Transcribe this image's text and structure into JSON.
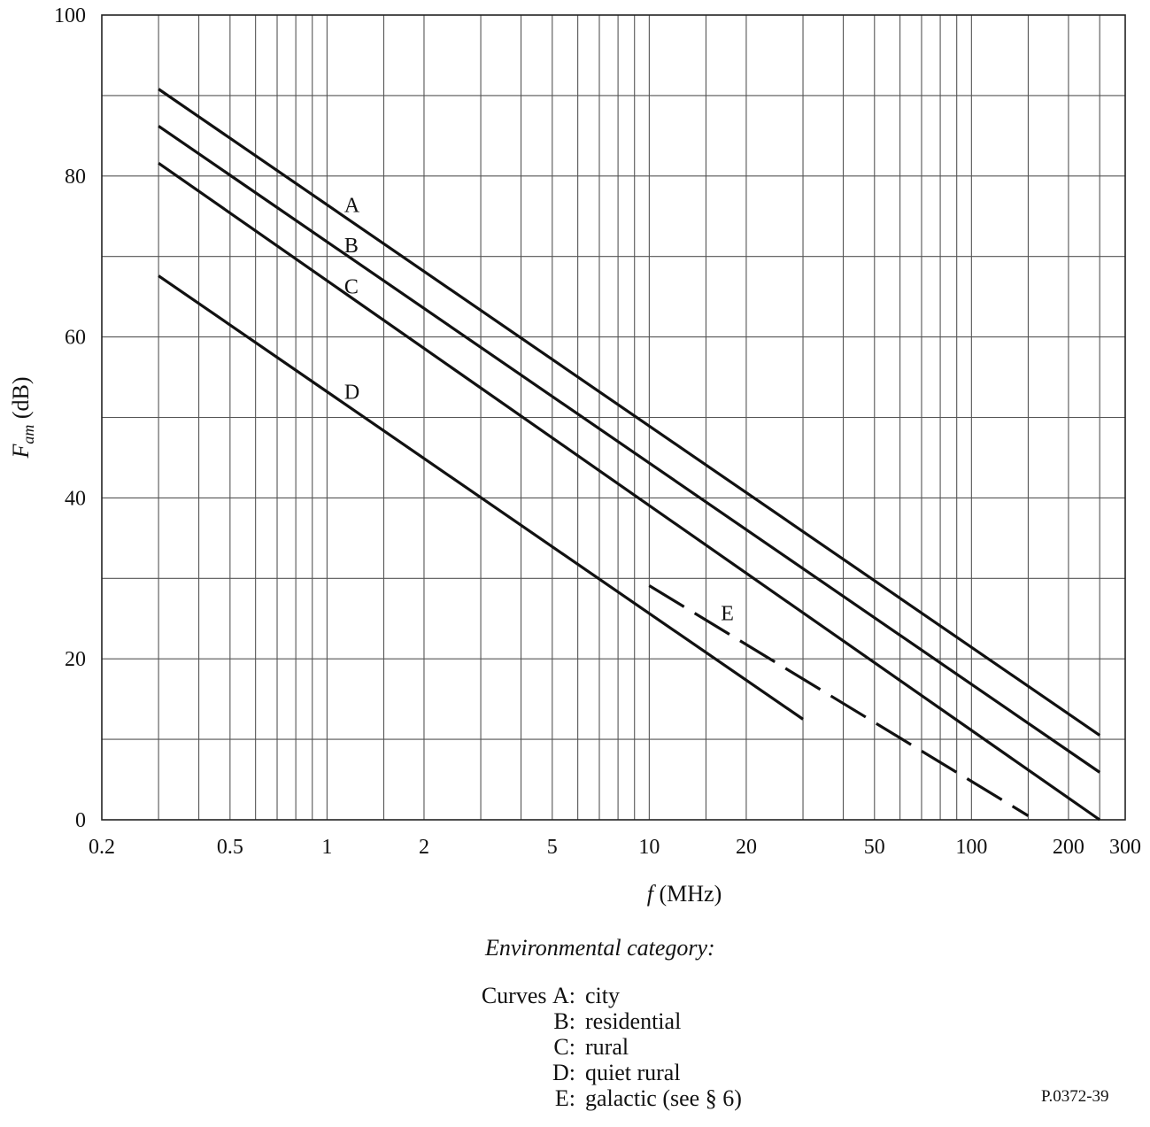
{
  "chart_data": {
    "type": "line",
    "x_scale": "log",
    "xlim": [
      0.2,
      300
    ],
    "ylim": [
      0,
      100
    ],
    "x_ticks": [
      {
        "value": 0.2,
        "label": "0.2"
      },
      {
        "value": 0.5,
        "label": "0.5"
      },
      {
        "value": 1,
        "label": "1"
      },
      {
        "value": 2,
        "label": "2"
      },
      {
        "value": 5,
        "label": "5"
      },
      {
        "value": 10,
        "label": "10"
      },
      {
        "value": 20,
        "label": "20"
      },
      {
        "value": 50,
        "label": "50"
      },
      {
        "value": 100,
        "label": "100"
      },
      {
        "value": 200,
        "label": "200"
      },
      {
        "value": 300,
        "label": "300"
      }
    ],
    "y_ticks": [
      {
        "value": 0,
        "label": "0"
      },
      {
        "value": 20,
        "label": "20"
      },
      {
        "value": 40,
        "label": "40"
      },
      {
        "value": 60,
        "label": "60"
      },
      {
        "value": 80,
        "label": "80"
      },
      {
        "value": 100,
        "label": "100"
      }
    ],
    "x_minor_grid": [
      0.3,
      0.4,
      0.6,
      0.7,
      0.8,
      0.9,
      1.5,
      3,
      4,
      6,
      7,
      8,
      9,
      15,
      30,
      40,
      60,
      70,
      80,
      90,
      150,
      250
    ],
    "y_minor_grid": [
      10,
      30,
      50,
      70,
      90
    ],
    "grid": true,
    "xlabel_italic": "f",
    "xlabel_rest": " (MHz)",
    "ylabel_main": "F",
    "ylabel_sub": "am",
    "ylabel_unit": " (dB)",
    "series": [
      {
        "name": "A",
        "style": "solid",
        "x": [
          0.3,
          250
        ],
        "y": [
          90.8,
          10.5
        ],
        "label_at": {
          "x": 1.22,
          "y": 76.5
        }
      },
      {
        "name": "B",
        "style": "solid",
        "x": [
          0.3,
          250
        ],
        "y": [
          86.2,
          5.9
        ],
        "label_at": {
          "x": 1.22,
          "y": 71.5
        }
      },
      {
        "name": "C",
        "style": "solid",
        "x": [
          0.3,
          250
        ],
        "y": [
          81.6,
          0.0
        ],
        "label_at": {
          "x": 1.22,
          "y": 66.4
        }
      },
      {
        "name": "D",
        "style": "solid",
        "x": [
          0.3,
          30
        ],
        "y": [
          67.6,
          12.5
        ],
        "label_at": {
          "x": 1.22,
          "y": 53.3
        }
      },
      {
        "name": "E",
        "style": "dashed",
        "x": [
          10,
          150
        ],
        "y": [
          29.1,
          0.5
        ],
        "label_at": {
          "x": 18.0,
          "y": 25.8
        }
      }
    ]
  },
  "legend": {
    "title": "Environmental category:",
    "prefix": "Curves",
    "items": [
      {
        "key": "A:",
        "text": "city"
      },
      {
        "key": "B:",
        "text": "residential"
      },
      {
        "key": "C:",
        "text": "rural"
      },
      {
        "key": "D:",
        "text": "quiet rural"
      },
      {
        "key": "E:",
        "text": "galactic (see § 6)"
      }
    ]
  },
  "figure_id": "P.0372-39"
}
